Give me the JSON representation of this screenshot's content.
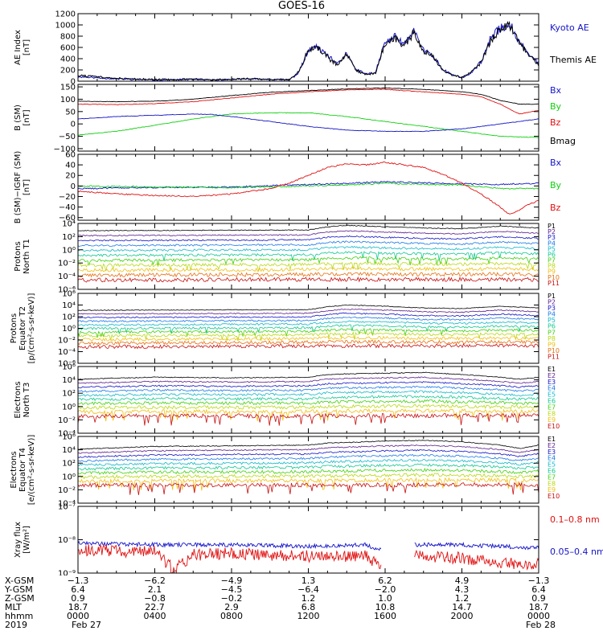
{
  "title": "GOES-16",
  "colors": {
    "black": "#000000",
    "blue": "#1414c8",
    "red": "#e01010",
    "green": "#10d010",
    "frame": "#000000"
  },
  "panels": [
    {
      "id": "ae",
      "ylabel_lines": [
        "AE Index",
        "[nT]"
      ],
      "ylim": [
        0,
        1200
      ],
      "log": false,
      "ticks": [
        {
          "v": 0,
          "t": "0"
        },
        {
          "v": 200,
          "t": "200"
        },
        {
          "v": 400,
          "t": "400"
        },
        {
          "v": 600,
          "t": "600"
        },
        {
          "v": 800,
          "t": "800"
        },
        {
          "v": 1000,
          "t": "1000"
        },
        {
          "v": 1200,
          "t": "1200"
        }
      ],
      "legend": [
        {
          "text": "Kyoto AE",
          "color": "#1414c8"
        },
        {
          "text": "Themis AE",
          "color": "#000000"
        }
      ]
    },
    {
      "id": "bsm",
      "ylabel_lines": [
        "B (SM)",
        "[nT]"
      ],
      "ylim": [
        -110,
        160
      ],
      "log": false,
      "ticks": [
        {
          "v": -100,
          "t": "−100"
        },
        {
          "v": -50,
          "t": "−50"
        },
        {
          "v": 0,
          "t": "0"
        },
        {
          "v": 50,
          "t": "50"
        },
        {
          "v": 100,
          "t": "100"
        },
        {
          "v": 150,
          "t": "150"
        }
      ],
      "legend": [
        {
          "text": "Bx",
          "color": "#1414c8"
        },
        {
          "text": "By",
          "color": "#10d010"
        },
        {
          "text": "Bz",
          "color": "#e01010"
        },
        {
          "text": "Bmag",
          "color": "#000000"
        }
      ]
    },
    {
      "id": "bigrf",
      "ylabel_lines": [
        "B (SM)−IGRF (SM)",
        "[nT]"
      ],
      "ylim": [
        -65,
        60
      ],
      "log": false,
      "ticks": [
        {
          "v": -60,
          "t": "−60"
        },
        {
          "v": -40,
          "t": "−40"
        },
        {
          "v": -20,
          "t": "−20"
        },
        {
          "v": 0,
          "t": "0"
        },
        {
          "v": 20,
          "t": "20"
        },
        {
          "v": 40,
          "t": "40"
        },
        {
          "v": 60,
          "t": "60"
        }
      ],
      "legend": [
        {
          "text": "Bx",
          "color": "#1414c8"
        },
        {
          "text": "By",
          "color": "#10d010"
        },
        {
          "text": "Bz",
          "color": "#e01010"
        }
      ]
    },
    {
      "id": "pn",
      "ylabel_lines": [
        "Protons",
        "North T1"
      ],
      "ylim": [
        -6,
        4
      ],
      "log": true,
      "ticks": [
        {
          "v": 4,
          "t": "10⁴"
        },
        {
          "v": 2,
          "t": "10²"
        },
        {
          "v": 0,
          "t": "10⁰"
        },
        {
          "v": -2,
          "t": "10⁻²"
        },
        {
          "v": -4,
          "t": "10⁻⁴"
        },
        {
          "v": -6,
          "t": "10⁻⁶"
        }
      ],
      "legend": [
        {
          "text": "P1",
          "color": "#000000"
        },
        {
          "text": "P2",
          "color": "#5a1a8c"
        },
        {
          "text": "P3",
          "color": "#1414c8"
        },
        {
          "text": "P4",
          "color": "#1a78e8"
        },
        {
          "text": "P5",
          "color": "#10b8c8"
        },
        {
          "text": "P6",
          "color": "#10c890"
        },
        {
          "text": "P7",
          "color": "#40d010"
        },
        {
          "text": "P8",
          "color": "#b8d810"
        },
        {
          "text": "P9",
          "color": "#f0c010"
        },
        {
          "text": "P10",
          "color": "#e87010"
        },
        {
          "text": "P11",
          "color": "#c81010"
        }
      ]
    },
    {
      "id": "pe",
      "ylabel_lines": [
        "Protons",
        "Equator T2",
        "[p/(cm²-s-sr-keV)]"
      ],
      "ylim": [
        -6,
        6
      ],
      "log": true,
      "ticks": [
        {
          "v": 6,
          "t": "10⁶"
        },
        {
          "v": 4,
          "t": "10⁴"
        },
        {
          "v": 2,
          "t": "10²"
        },
        {
          "v": 0,
          "t": "10⁰"
        },
        {
          "v": -2,
          "t": "10⁻²"
        },
        {
          "v": -4,
          "t": "10⁻⁴"
        },
        {
          "v": -6,
          "t": "10⁻⁶"
        }
      ],
      "legend": [
        {
          "text": "P1",
          "color": "#000000"
        },
        {
          "text": "P2",
          "color": "#5a1a8c"
        },
        {
          "text": "P3",
          "color": "#1414c8"
        },
        {
          "text": "P4",
          "color": "#1a78e8"
        },
        {
          "text": "P5",
          "color": "#10b8c8"
        },
        {
          "text": "P6",
          "color": "#10c890"
        },
        {
          "text": "P7",
          "color": "#40d010"
        },
        {
          "text": "P8",
          "color": "#b8d810"
        },
        {
          "text": "P9",
          "color": "#f0c010"
        },
        {
          "text": "P10",
          "color": "#e87010"
        },
        {
          "text": "P11",
          "color": "#c81010"
        }
      ]
    },
    {
      "id": "en",
      "ylabel_lines": [
        "Electrons",
        "North T3"
      ],
      "ylim": [
        -4,
        6
      ],
      "log": true,
      "ticks": [
        {
          "v": 6,
          "t": "10⁶"
        },
        {
          "v": 4,
          "t": "10⁴"
        },
        {
          "v": 2,
          "t": "10²"
        },
        {
          "v": 0,
          "t": "10⁰"
        },
        {
          "v": -2,
          "t": "10⁻²"
        },
        {
          "v": -4,
          "t": "10⁻⁴"
        }
      ],
      "legend": [
        {
          "text": "E1",
          "color": "#000000"
        },
        {
          "text": "E2",
          "color": "#5a1a8c"
        },
        {
          "text": "E3",
          "color": "#1414c8"
        },
        {
          "text": "E4",
          "color": "#1a78e8"
        },
        {
          "text": "E5",
          "color": "#10b8c8"
        },
        {
          "text": "E6",
          "color": "#10c890"
        },
        {
          "text": "E7",
          "color": "#40d010"
        },
        {
          "text": "E8",
          "color": "#b8d810"
        },
        {
          "text": "E9",
          "color": "#f0c010"
        },
        {
          "text": "E10",
          "color": "#c81010"
        }
      ]
    },
    {
      "id": "ee",
      "ylabel_lines": [
        "Electrons",
        "Equator T4",
        "[e/(cm²-s-sr-keV)]"
      ],
      "ylim": [
        -4,
        6
      ],
      "log": true,
      "ticks": [
        {
          "v": 6,
          "t": "10⁶"
        },
        {
          "v": 4,
          "t": "10⁴"
        },
        {
          "v": 2,
          "t": "10²"
        },
        {
          "v": 0,
          "t": "10⁰"
        },
        {
          "v": -2,
          "t": "10⁻²"
        },
        {
          "v": -4,
          "t": "10⁻⁴"
        }
      ],
      "legend": [
        {
          "text": "E1",
          "color": "#000000"
        },
        {
          "text": "E2",
          "color": "#5a1a8c"
        },
        {
          "text": "E3",
          "color": "#1414c8"
        },
        {
          "text": "E4",
          "color": "#1a78e8"
        },
        {
          "text": "E5",
          "color": "#10b8c8"
        },
        {
          "text": "E6",
          "color": "#10c890"
        },
        {
          "text": "E7",
          "color": "#40d010"
        },
        {
          "text": "E8",
          "color": "#b8d810"
        },
        {
          "text": "E9",
          "color": "#f0c010"
        },
        {
          "text": "E10",
          "color": "#c81010"
        }
      ]
    },
    {
      "id": "xray",
      "ylabel_lines": [
        "Xray flux",
        "[W/m²]"
      ],
      "ylim": [
        -9,
        -7
      ],
      "log": true,
      "ticks": [
        {
          "v": -7,
          "t": "10⁻⁷"
        },
        {
          "v": -8,
          "t": "10⁻⁸"
        },
        {
          "v": -9,
          "t": "10⁻⁹"
        }
      ],
      "legend": [
        {
          "text": "0.1–0.8 nm",
          "color": "#e01010"
        },
        {
          "text": "0.05–0.4 nm",
          "color": "#1414c8"
        }
      ]
    }
  ],
  "ephemeris": {
    "labels": [
      "X-GSM",
      "Y-GSM",
      "Z-GSM",
      "MLT",
      "hhmm",
      "2019"
    ],
    "columns": [
      {
        "values": [
          "−1.3",
          "6.4",
          "0.9",
          "18.7",
          "0000",
          "Feb 27"
        ]
      },
      {
        "values": [
          "−6.2",
          "2.1",
          "−0.8",
          "22.7",
          "0400",
          ""
        ]
      },
      {
        "values": [
          "−4.9",
          "−4.5",
          "−0.2",
          "2.9",
          "0800",
          ""
        ]
      },
      {
        "values": [
          "1.3",
          "−6.4",
          "1.2",
          "6.8",
          "1200",
          ""
        ]
      },
      {
        "values": [
          "6.2",
          "−2.0",
          "1.0",
          "10.8",
          "1600",
          ""
        ]
      },
      {
        "values": [
          "4.9",
          "4.3",
          "1.2",
          "14.7",
          "2000",
          ""
        ]
      },
      {
        "values": [
          "−1.3",
          "6.4",
          "0.9",
          "18.7",
          "0000",
          "Feb 28"
        ]
      }
    ]
  },
  "chart_data": {
    "type": "line",
    "title": "GOES-16",
    "x_unit": "UT hours from 2019 Feb 27 0000",
    "xlim": [
      0,
      24
    ],
    "series": [
      {
        "panel": "ae",
        "name": "Kyoto AE",
        "x": [
          0,
          1,
          2,
          3,
          4,
          5,
          6,
          7,
          8,
          9,
          10,
          11,
          11.5,
          12,
          12.5,
          13,
          13.5,
          14,
          14.5,
          15,
          15.5,
          16,
          16.5,
          17,
          17.5,
          18,
          18.5,
          19,
          19.5,
          20,
          20.5,
          21,
          21.5,
          22,
          22.5,
          23,
          23.5,
          24
        ],
        "y": [
          80,
          60,
          40,
          30,
          20,
          25,
          30,
          20,
          30,
          40,
          30,
          20,
          150,
          550,
          600,
          450,
          300,
          500,
          200,
          130,
          150,
          700,
          800,
          650,
          900,
          550,
          450,
          200,
          120,
          60,
          150,
          350,
          750,
          950,
          1000,
          700,
          500,
          300
        ]
      },
      {
        "panel": "ae",
        "name": "Themis AE",
        "x": [
          0,
          1,
          2,
          3,
          4,
          5,
          6,
          7,
          8,
          9,
          10,
          11,
          11.5,
          12,
          12.5,
          13,
          13.5,
          14,
          14.5,
          15,
          15.5,
          16,
          16.5,
          17,
          17.5,
          18,
          18.5,
          19,
          19.5,
          20,
          20.5,
          21,
          21.5,
          22,
          22.5,
          23,
          23.5,
          24
        ],
        "y": [
          100,
          80,
          50,
          40,
          30,
          30,
          35,
          25,
          35,
          45,
          35,
          25,
          160,
          560,
          580,
          430,
          280,
          480,
          190,
          120,
          140,
          680,
          780,
          630,
          870,
          530,
          430,
          190,
          110,
          70,
          160,
          340,
          720,
          920,
          980,
          680,
          480,
          280
        ]
      },
      {
        "panel": "bsm",
        "name": "Bx",
        "x": [
          0,
          2,
          4,
          6,
          7,
          8,
          10,
          12,
          14,
          16,
          18,
          20,
          22,
          23,
          24
        ],
        "y": [
          20,
          30,
          35,
          40,
          38,
          30,
          10,
          -10,
          -25,
          -30,
          -30,
          -20,
          0,
          10,
          20
        ]
      },
      {
        "panel": "bsm",
        "name": "By",
        "x": [
          0,
          2,
          4,
          6,
          8,
          10,
          12,
          14,
          16,
          18,
          20,
          22,
          24
        ],
        "y": [
          -45,
          -30,
          -5,
          20,
          40,
          45,
          45,
          30,
          10,
          -10,
          -30,
          -50,
          -55
        ]
      },
      {
        "panel": "bsm",
        "name": "Bz",
        "x": [
          0,
          2,
          4,
          6,
          8,
          10,
          12,
          14,
          16,
          18,
          20,
          21,
          22,
          23,
          24
        ],
        "y": [
          80,
          78,
          82,
          90,
          105,
          120,
          130,
          138,
          140,
          130,
          120,
          110,
          80,
          40,
          55
        ]
      },
      {
        "panel": "bsm",
        "name": "Bmag",
        "x": [
          0,
          2,
          4,
          6,
          8,
          10,
          12,
          14,
          16,
          18,
          20,
          21,
          22,
          23,
          24
        ],
        "y": [
          92,
          90,
          92,
          100,
          115,
          128,
          135,
          142,
          145,
          140,
          130,
          120,
          95,
          80,
          80
        ]
      },
      {
        "panel": "bigrf",
        "name": "Bx",
        "x": [
          0,
          4,
          8,
          12,
          14,
          16,
          18,
          20,
          22,
          24
        ],
        "y": [
          -5,
          -3,
          -2,
          3,
          5,
          8,
          6,
          4,
          3,
          5
        ]
      },
      {
        "panel": "bigrf",
        "name": "By",
        "x": [
          0,
          4,
          8,
          12,
          14,
          16,
          18,
          20,
          22,
          24
        ],
        "y": [
          0,
          -2,
          -3,
          0,
          2,
          5,
          3,
          2,
          -5,
          -5
        ]
      },
      {
        "panel": "bigrf",
        "name": "Bz",
        "x": [
          0,
          2,
          4,
          6,
          8,
          10,
          11,
          12,
          13,
          14,
          15,
          16,
          17,
          18,
          19,
          20,
          21,
          22,
          22.5,
          23,
          23.5,
          24
        ],
        "y": [
          -10,
          -15,
          -18,
          -20,
          -15,
          -5,
          5,
          20,
          35,
          42,
          40,
          45,
          40,
          35,
          22,
          5,
          -15,
          -40,
          -55,
          -45,
          -35,
          -28
        ]
      },
      {
        "panel": "pn",
        "name": "P1",
        "x": [
          0,
          12,
          13,
          14,
          16,
          18,
          20,
          22,
          24
        ],
        "y": [
          2.9,
          3.0,
          3.5,
          3.7,
          3.5,
          3.3,
          3.2,
          3.6,
          3.3
        ]
      },
      {
        "panel": "pn",
        "name": "P11",
        "x": [
          0,
          12,
          24
        ],
        "y": [
          -4.6,
          -4.5,
          -4.5
        ]
      },
      {
        "panel": "pe",
        "name": "P1",
        "x": [
          0,
          12,
          13,
          14,
          16,
          18,
          20,
          22,
          24
        ],
        "y": [
          3.1,
          3.2,
          3.7,
          4.0,
          3.8,
          3.5,
          3.4,
          3.8,
          3.5
        ]
      },
      {
        "panel": "pe",
        "name": "P11",
        "x": [
          0,
          12,
          24
        ],
        "y": [
          -3.2,
          -3.0,
          -3.0
        ]
      },
      {
        "panel": "en",
        "name": "E1",
        "x": [
          0,
          4,
          8,
          12,
          13,
          14,
          16,
          18,
          20,
          22,
          23,
          24
        ],
        "y": [
          4.1,
          4.4,
          4.3,
          4.4,
          4.8,
          4.9,
          5.0,
          5.1,
          4.8,
          4.4,
          4.1,
          4.4
        ]
      },
      {
        "panel": "en",
        "name": "E10",
        "x": [
          0,
          12,
          24
        ],
        "y": [
          -1.4,
          -1.4,
          -1.3
        ]
      },
      {
        "panel": "ee",
        "name": "E1",
        "x": [
          0,
          4,
          8,
          12,
          13,
          14,
          16,
          18,
          20,
          22,
          23,
          24
        ],
        "y": [
          4.1,
          4.5,
          4.6,
          4.7,
          5.0,
          5.1,
          5.3,
          5.4,
          5.2,
          4.7,
          4.2,
          4.7
        ]
      },
      {
        "panel": "ee",
        "name": "E10",
        "x": [
          0,
          12,
          24
        ],
        "y": [
          -1.3,
          -1.3,
          -1.2
        ]
      },
      {
        "panel": "xray",
        "name": "0.05–0.4 nm",
        "x": [
          0,
          4,
          8,
          12,
          15,
          15.7,
          17.5,
          20,
          22,
          24
        ],
        "y": [
          -8.1,
          -8.15,
          -8.15,
          -8.2,
          -8.15,
          -8.3,
          -8.15,
          -8.15,
          -8.2,
          -8.25
        ]
      },
      {
        "panel": "xray",
        "name": "0.1–0.8 nm",
        "x": [
          0,
          2,
          4,
          5,
          6,
          8,
          10,
          12,
          15,
          15.7,
          17.5,
          20,
          22,
          24
        ],
        "y": [
          -8.3,
          -8.35,
          -8.35,
          -8.9,
          -8.45,
          -8.4,
          -8.45,
          -8.5,
          -8.5,
          -8.8,
          -8.5,
          -8.55,
          -8.7,
          -8.75
        ]
      }
    ],
    "data_gaps_hours": [
      [
        15.8,
        17.5
      ]
    ]
  }
}
